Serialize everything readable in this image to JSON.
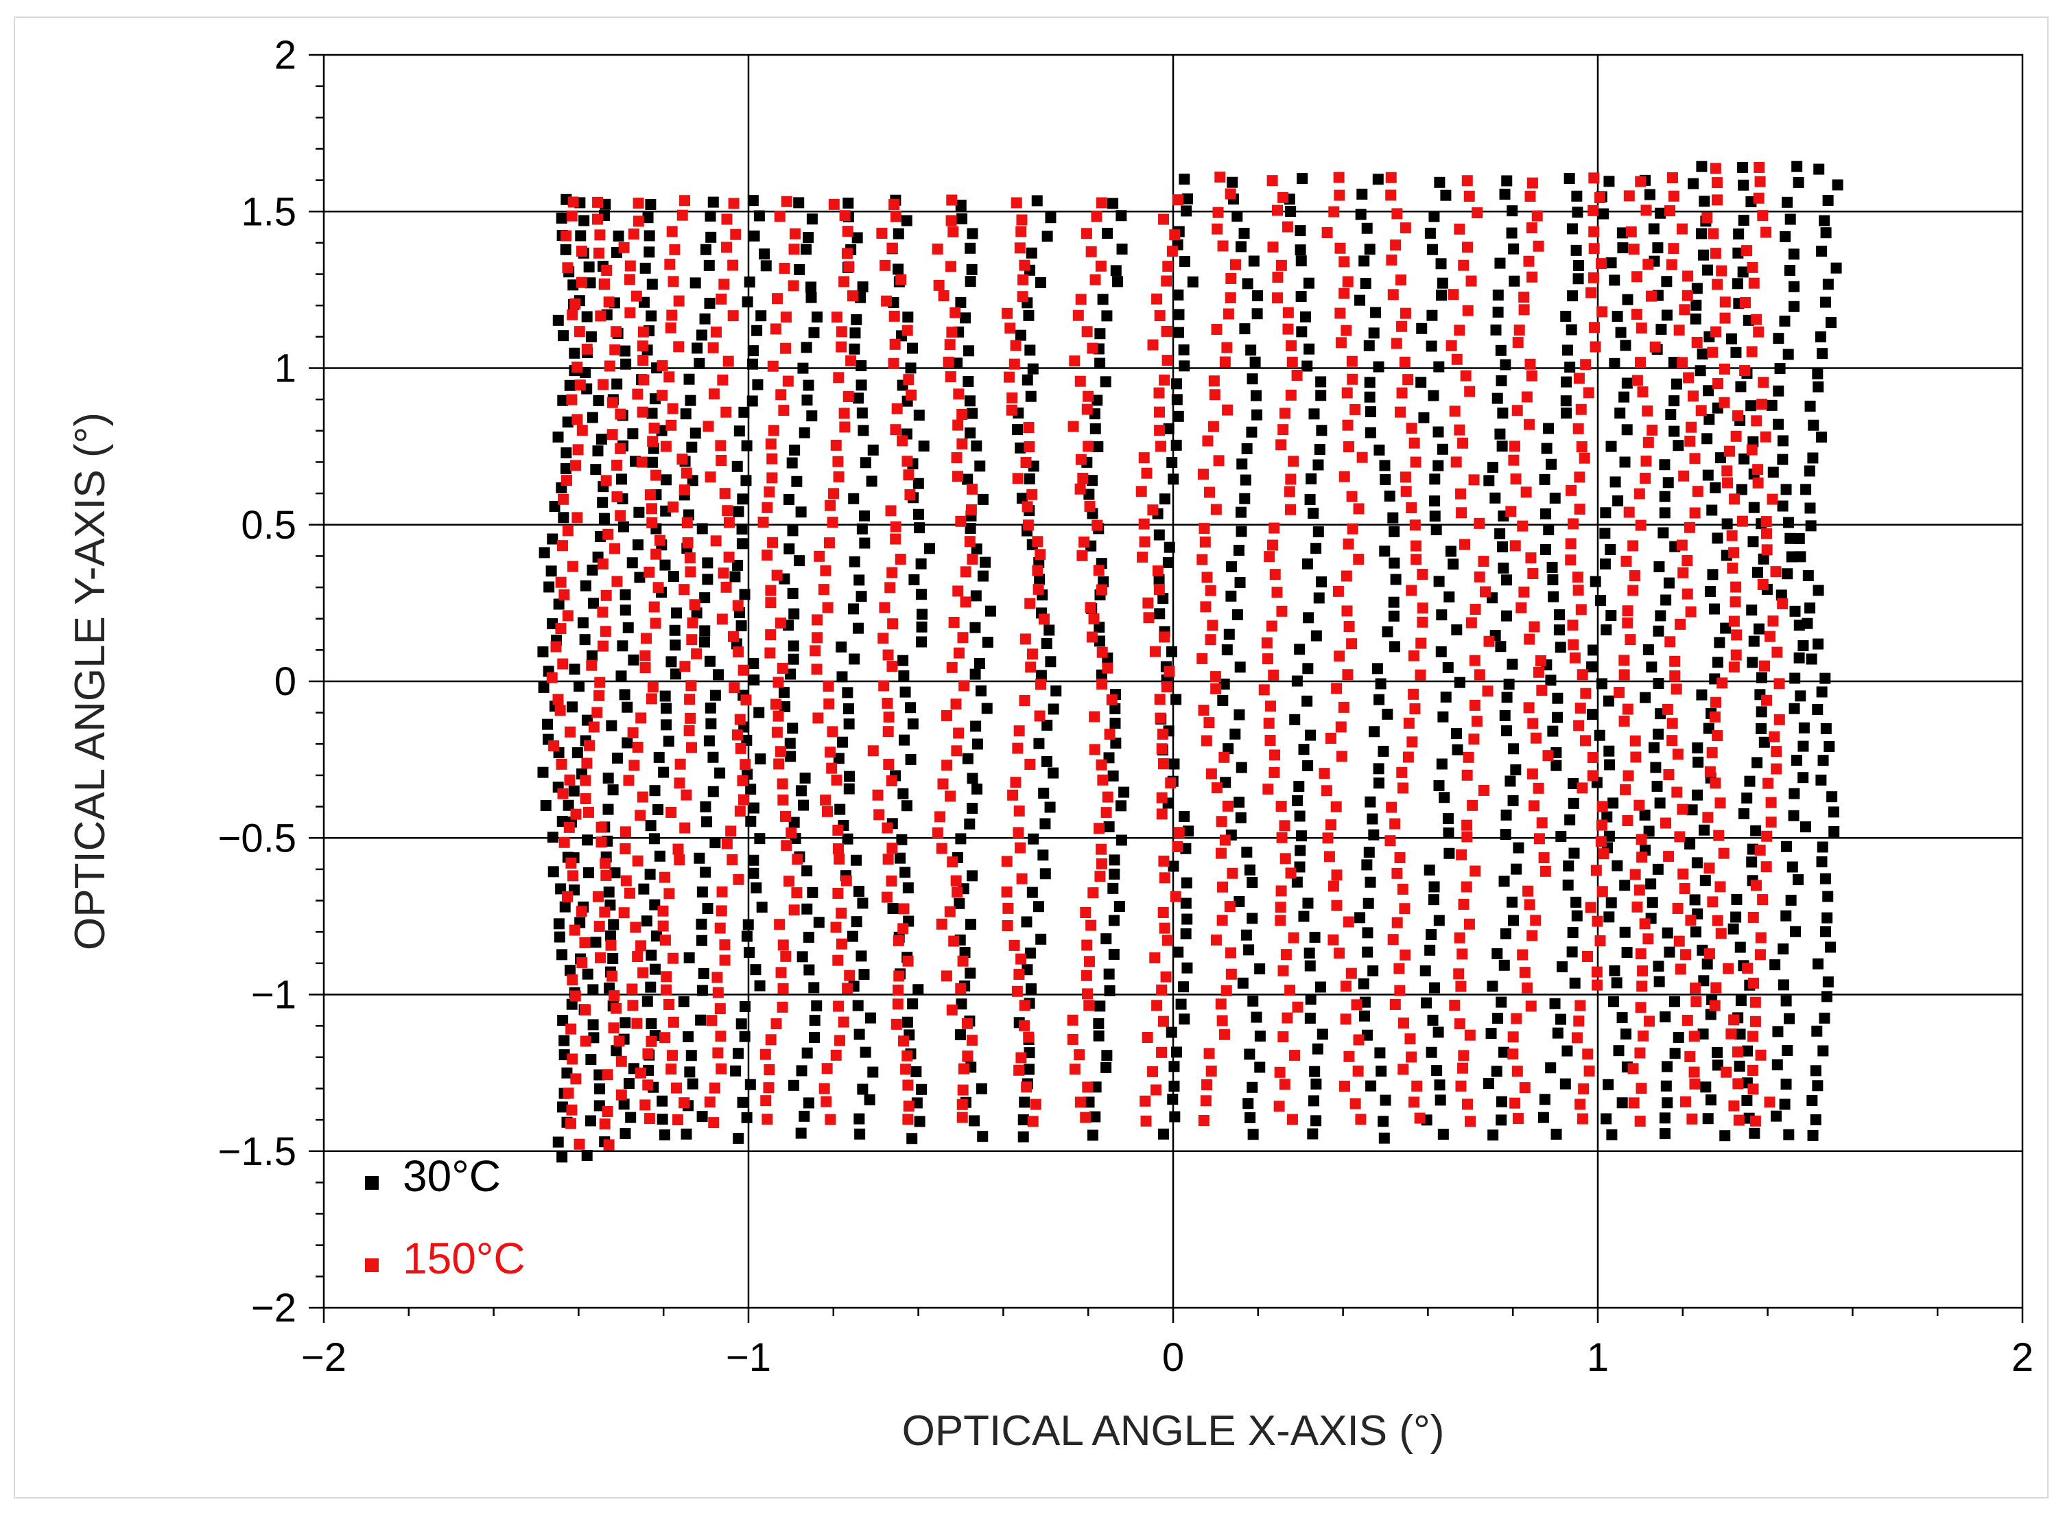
{
  "chart_data": {
    "type": "scatter",
    "xlabel": "OPTICAL ANGLE X-AXIS (°)",
    "ylabel": "OPTICAL ANGLE Y-AXIS (°)",
    "xlim": [
      -2,
      2
    ],
    "ylim": [
      -2,
      2
    ],
    "x_ticks": [
      "−2",
      "−1",
      "0",
      "1",
      "2"
    ],
    "y_ticks": [
      "−2",
      "−1.5",
      "−1",
      "−0.5",
      "0",
      "0.5",
      "1",
      "1.5",
      "2"
    ],
    "grid": true,
    "legend_position": "bottom-left",
    "marker": "square",
    "series": [
      {
        "name": "30°C",
        "color": "#000000",
        "grid_columns_x": [
          -1.45,
          -1.38,
          -1.3,
          -1.21,
          -1.11,
          -1.0,
          -0.88,
          -0.75,
          -0.62,
          -0.47,
          -0.32,
          -0.16,
          0.0,
          0.16,
          0.32,
          0.48,
          0.63,
          0.78,
          0.91,
          1.03,
          1.15,
          1.26,
          1.36,
          1.45,
          1.52
        ],
        "y_range": [
          -1.5,
          1.6
        ]
      },
      {
        "name": "150°C",
        "color": "#ee1111",
        "grid_columns_x": [
          -1.42,
          -1.34,
          -1.25,
          -1.16,
          -1.05,
          -0.93,
          -0.8,
          -0.66,
          -0.51,
          -0.35,
          -0.19,
          -0.03,
          0.1,
          0.25,
          0.4,
          0.55,
          0.7,
          0.84,
          0.97,
          1.09,
          1.2,
          1.3,
          1.39
        ],
        "y_range": [
          -1.45,
          1.6
        ]
      }
    ]
  }
}
